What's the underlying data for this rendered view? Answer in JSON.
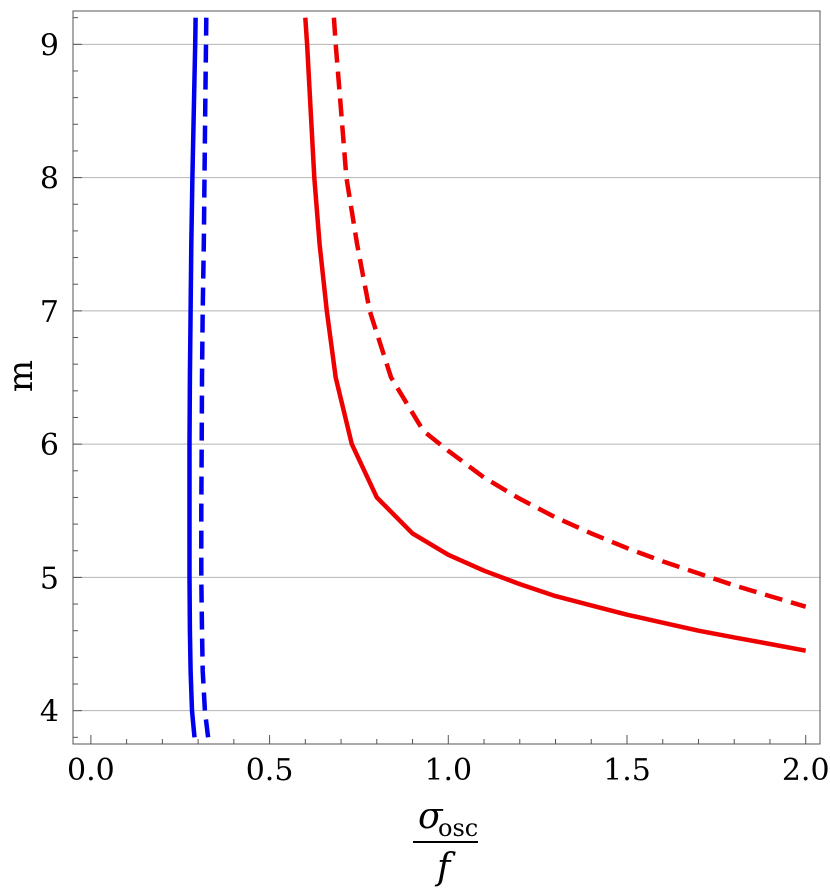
{
  "chart_data": {
    "type": "line",
    "xlabel": {
      "numerator": "σ",
      "numerator_sub": "osc",
      "denominator": "f"
    },
    "ylabel": "m",
    "xlim": [
      -0.05,
      2.04
    ],
    "ylim": [
      3.75,
      9.25
    ],
    "x_ticks": [
      0.0,
      0.5,
      1.0,
      1.5,
      2.0
    ],
    "x_tick_labels": [
      "0.0",
      "0.5",
      "1.0",
      "1.5",
      "2.0"
    ],
    "y_ticks": [
      4,
      5,
      6,
      7,
      8,
      9
    ],
    "y_tick_labels": [
      "4",
      "5",
      "6",
      "7",
      "8",
      "9"
    ],
    "grid": {
      "horizontal": true,
      "vertical": false
    },
    "series": [
      {
        "color": "#0000ee",
        "dash": "solid",
        "points": [
          [
            0.29,
            3.8
          ],
          [
            0.283,
            4.0
          ],
          [
            0.279,
            4.3
          ],
          [
            0.277,
            4.6
          ],
          [
            0.276,
            5.0
          ],
          [
            0.276,
            5.5
          ],
          [
            0.276,
            6.0
          ],
          [
            0.277,
            6.5
          ],
          [
            0.279,
            7.0
          ],
          [
            0.281,
            7.5
          ],
          [
            0.284,
            8.0
          ],
          [
            0.288,
            8.5
          ],
          [
            0.292,
            9.0
          ],
          [
            0.293,
            9.2
          ]
        ]
      },
      {
        "color": "#0000ee",
        "dash": "dashed",
        "points": [
          [
            0.328,
            3.8
          ],
          [
            0.319,
            4.0
          ],
          [
            0.313,
            4.3
          ],
          [
            0.311,
            4.6
          ],
          [
            0.309,
            5.0
          ],
          [
            0.309,
            5.5
          ],
          [
            0.31,
            6.0
          ],
          [
            0.311,
            6.5
          ],
          [
            0.313,
            7.0
          ],
          [
            0.316,
            7.5
          ],
          [
            0.318,
            8.0
          ],
          [
            0.32,
            8.5
          ],
          [
            0.322,
            9.0
          ],
          [
            0.323,
            9.2
          ]
        ]
      },
      {
        "color": "#ee0000",
        "dash": "solid",
        "points": [
          [
            0.6,
            9.2
          ],
          [
            0.605,
            9.0
          ],
          [
            0.615,
            8.5
          ],
          [
            0.625,
            8.0
          ],
          [
            0.64,
            7.5
          ],
          [
            0.66,
            7.0
          ],
          [
            0.685,
            6.5
          ],
          [
            0.73,
            6.0
          ],
          [
            0.8,
            5.6
          ],
          [
            0.9,
            5.33
          ],
          [
            1.0,
            5.17
          ],
          [
            1.1,
            5.05
          ],
          [
            1.2,
            4.95
          ],
          [
            1.3,
            4.86
          ],
          [
            1.4,
            4.79
          ],
          [
            1.5,
            4.72
          ],
          [
            1.6,
            4.66
          ],
          [
            1.7,
            4.6
          ],
          [
            1.8,
            4.55
          ],
          [
            1.9,
            4.5
          ],
          [
            2.0,
            4.45
          ]
        ]
      },
      {
        "color": "#ee0000",
        "dash": "dashed",
        "points": [
          [
            0.68,
            9.2
          ],
          [
            0.685,
            9.0
          ],
          [
            0.7,
            8.5
          ],
          [
            0.715,
            8.0
          ],
          [
            0.745,
            7.5
          ],
          [
            0.78,
            7.0
          ],
          [
            0.84,
            6.5
          ],
          [
            0.93,
            6.1
          ],
          [
            1.0,
            5.95
          ],
          [
            1.1,
            5.75
          ],
          [
            1.2,
            5.59
          ],
          [
            1.3,
            5.45
          ],
          [
            1.4,
            5.33
          ],
          [
            1.5,
            5.22
          ],
          [
            1.6,
            5.12
          ],
          [
            1.7,
            5.03
          ],
          [
            1.8,
            4.94
          ],
          [
            1.9,
            4.86
          ],
          [
            2.0,
            4.78
          ]
        ]
      }
    ]
  }
}
